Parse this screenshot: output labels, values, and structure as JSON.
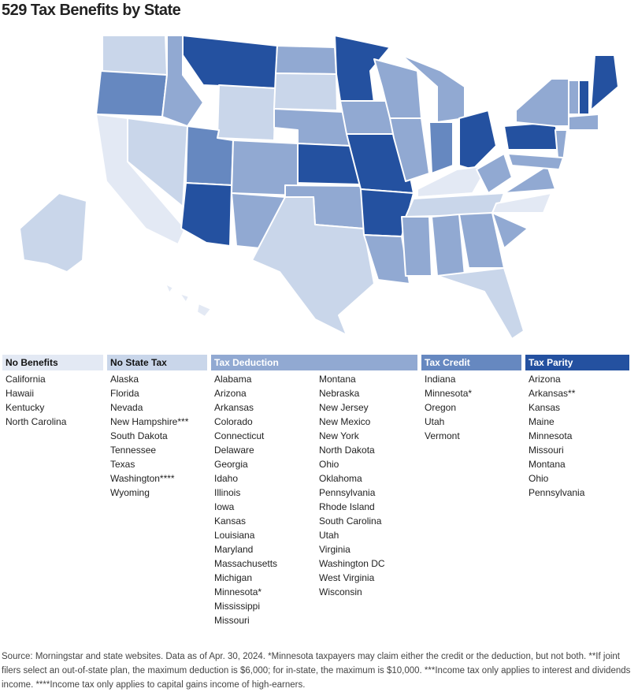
{
  "title": "529 Tax Benefits by State",
  "legend": [
    {
      "header": "No Benefits",
      "states": [
        "California",
        "Hawaii",
        "Kentucky",
        "North Carolina"
      ]
    },
    {
      "header": "No State Tax",
      "states": [
        "Alaska",
        "Florida",
        "Nevada",
        "New Hampshire***",
        "South Dakota",
        "Tennessee",
        "Texas",
        "Washington****",
        "Wyoming"
      ]
    },
    {
      "header": "Tax Deduction",
      "states": [
        "Alabama",
        "Arizona",
        "Arkansas",
        "Colorado",
        "Connecticut",
        "Delaware",
        "Georgia",
        "Idaho",
        "Illinois",
        "Iowa",
        "Kansas",
        "Louisiana",
        "Maryland",
        "Massachusetts",
        "Michigan",
        "Minnesota*",
        "Mississippi",
        "Missouri",
        "Montana",
        "Nebraska",
        "New Jersey",
        "New Mexico",
        "New York",
        "North Dakota",
        "Ohio",
        "Oklahoma",
        "Pennsylvania",
        "Rhode Island",
        "South Carolina",
        "Utah",
        "Virginia",
        "Washington DC",
        "West Virginia",
        "Wisconsin"
      ]
    },
    {
      "header": "Tax Credit",
      "states": [
        "Indiana",
        "Minnesota*",
        "Oregon",
        "Utah",
        "Vermont"
      ]
    },
    {
      "header": "Tax Parity",
      "states": [
        "Arizona",
        "Arkansas**",
        "Kansas",
        "Maine",
        "Minnesota",
        "Missouri",
        "Montana",
        "Ohio",
        "Pennsylvania"
      ]
    }
  ],
  "source": "Source: Morningstar and state websites. Data as of Apr. 30, 2024. *Minnesota taxpayers may claim either the credit or the deduction, but not both. **If joint filers select an out-of-state plan, the maximum deduction is $6,000; for in-state, the maximum is $10,000. ***Income tax only applies to interest and dividends income. ****Income tax only applies to capital gains income of high-earners."
}
